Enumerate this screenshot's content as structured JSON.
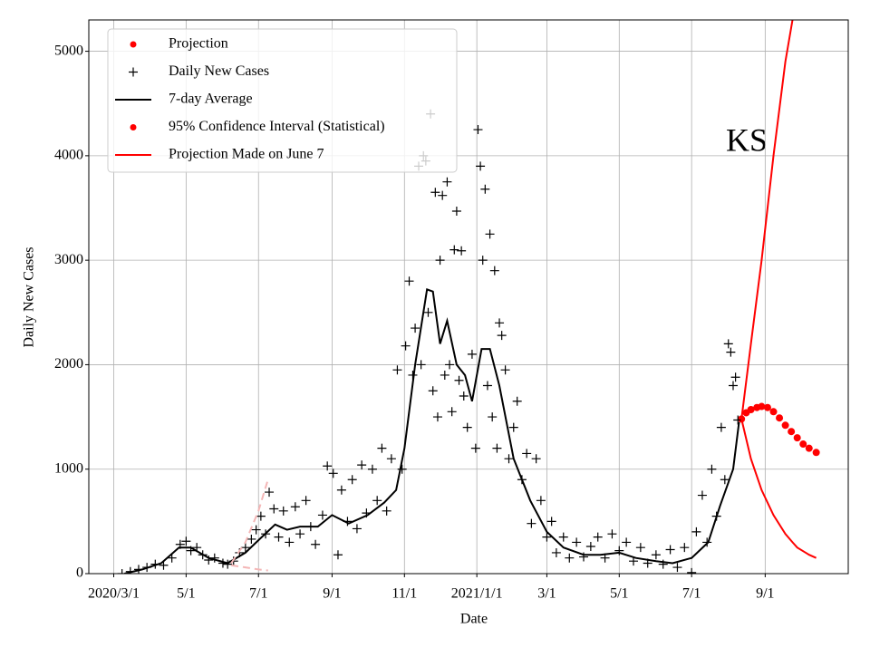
{
  "chart_data": {
    "type": "line",
    "annotation": "KS",
    "xlabel": "Date",
    "ylabel": "Daily New Cases",
    "xlim": [
      "2020-02-09",
      "2021-11-10"
    ],
    "ylim": [
      0,
      5300
    ],
    "xticks": [
      {
        "value": "2020-03-01",
        "label": "2020/3/1"
      },
      {
        "value": "2020-05-01",
        "label": "5/1"
      },
      {
        "value": "2020-07-01",
        "label": "7/1"
      },
      {
        "value": "2020-09-01",
        "label": "9/1"
      },
      {
        "value": "2020-11-01",
        "label": "11/1"
      },
      {
        "value": "2021-01-01",
        "label": "2021/1/1"
      },
      {
        "value": "2021-03-01",
        "label": "3/1"
      },
      {
        "value": "2021-05-01",
        "label": "5/1"
      },
      {
        "value": "2021-07-01",
        "label": "7/1"
      },
      {
        "value": "2021-09-01",
        "label": "9/1"
      }
    ],
    "yticks": [
      0,
      1000,
      2000,
      3000,
      4000,
      5000
    ],
    "grid": true,
    "legend": "upper left",
    "series": [
      {
        "name": "Projection",
        "style": "dot",
        "color": "#ff0000",
        "x": [
          "2021-08-12",
          "2021-08-16",
          "2021-08-20",
          "2021-08-25",
          "2021-08-29",
          "2021-09-03",
          "2021-09-08",
          "2021-09-13",
          "2021-09-18",
          "2021-09-23",
          "2021-09-28",
          "2021-10-03",
          "2021-10-08",
          "2021-10-14"
        ],
        "values": [
          1480,
          1540,
          1570,
          1590,
          1600,
          1590,
          1550,
          1490,
          1420,
          1360,
          1300,
          1240,
          1200,
          1160
        ]
      },
      {
        "name": "Daily New Cases",
        "style": "plus",
        "color": "#000000",
        "x": [
          "2020-03-08",
          "2020-03-15",
          "2020-03-22",
          "2020-03-29",
          "2020-04-05",
          "2020-04-12",
          "2020-04-19",
          "2020-04-26",
          "2020-05-01",
          "2020-05-05",
          "2020-05-10",
          "2020-05-15",
          "2020-05-20",
          "2020-05-25",
          "2020-06-01",
          "2020-06-05",
          "2020-06-10",
          "2020-06-15",
          "2020-06-20",
          "2020-06-25",
          "2020-06-29",
          "2020-07-03",
          "2020-07-07",
          "2020-07-10",
          "2020-07-14",
          "2020-07-18",
          "2020-07-22",
          "2020-07-27",
          "2020-08-01",
          "2020-08-05",
          "2020-08-10",
          "2020-08-14",
          "2020-08-18",
          "2020-08-24",
          "2020-08-28",
          "2020-09-02",
          "2020-09-06",
          "2020-09-09",
          "2020-09-14",
          "2020-09-18",
          "2020-09-22",
          "2020-09-26",
          "2020-09-30",
          "2020-10-05",
          "2020-10-09",
          "2020-10-13",
          "2020-10-17",
          "2020-10-21",
          "2020-10-26",
          "2020-10-30",
          "2020-11-02",
          "2020-11-05",
          "2020-11-08",
          "2020-11-10",
          "2020-11-13",
          "2020-11-15",
          "2020-11-17",
          "2020-11-19",
          "2020-11-21",
          "2020-11-23",
          "2020-11-25",
          "2020-11-27",
          "2020-11-29",
          "2020-12-01",
          "2020-12-03",
          "2020-12-05",
          "2020-12-07",
          "2020-12-09",
          "2020-12-11",
          "2020-12-13",
          "2020-12-15",
          "2020-12-17",
          "2020-12-19",
          "2020-12-21",
          "2020-12-24",
          "2020-12-28",
          "2020-12-31",
          "2021-01-02",
          "2021-01-04",
          "2021-01-06",
          "2021-01-08",
          "2021-01-10",
          "2021-01-12",
          "2021-01-14",
          "2021-01-16",
          "2021-01-18",
          "2021-01-20",
          "2021-01-22",
          "2021-01-25",
          "2021-01-28",
          "2021-02-01",
          "2021-02-04",
          "2021-02-08",
          "2021-02-12",
          "2021-02-16",
          "2021-02-20",
          "2021-02-24",
          "2021-03-01",
          "2021-03-05",
          "2021-03-09",
          "2021-03-15",
          "2021-03-20",
          "2021-03-26",
          "2021-04-01",
          "2021-04-07",
          "2021-04-13",
          "2021-04-19",
          "2021-04-25",
          "2021-05-01",
          "2021-05-07",
          "2021-05-13",
          "2021-05-19",
          "2021-05-25",
          "2021-06-01",
          "2021-06-07",
          "2021-06-13",
          "2021-06-19",
          "2021-06-25",
          "2021-07-01",
          "2021-07-05",
          "2021-07-10",
          "2021-07-14",
          "2021-07-18",
          "2021-07-22",
          "2021-07-26",
          "2021-07-29",
          "2021-08-01",
          "2021-08-03",
          "2021-08-05",
          "2021-08-07",
          "2021-08-09"
        ],
        "values": [
          0,
          20,
          40,
          60,
          90,
          80,
          150,
          280,
          310,
          220,
          250,
          180,
          130,
          150,
          100,
          90,
          120,
          200,
          250,
          330,
          420,
          550,
          380,
          780,
          620,
          350,
          600,
          300,
          640,
          380,
          700,
          450,
          280,
          560,
          1030,
          960,
          180,
          800,
          500,
          900,
          430,
          1040,
          580,
          1000,
          700,
          1200,
          600,
          1100,
          1950,
          1000,
          2180,
          2800,
          1900,
          2350,
          3900,
          2000,
          4000,
          3950,
          2500,
          4400,
          1750,
          3650,
          1500,
          3000,
          3620,
          1900,
          3750,
          2000,
          1550,
          3100,
          3470,
          1850,
          3090,
          1700,
          1400,
          2100,
          1200,
          4250,
          3900,
          3000,
          3680,
          1800,
          3250,
          1500,
          2900,
          1200,
          2400,
          2280,
          1950,
          1100,
          1400,
          1650,
          900,
          1150,
          480,
          1100,
          700,
          350,
          500,
          200,
          350,
          150,
          300,
          160,
          260,
          350,
          150,
          380,
          220,
          300,
          120,
          250,
          100,
          180,
          90,
          230,
          60,
          250,
          10,
          400,
          750,
          300,
          1000,
          550,
          1400,
          900,
          2200,
          2120,
          1800,
          1880,
          1470
        ]
      },
      {
        "name": "7-day Average",
        "style": "line",
        "color": "#000000",
        "x": [
          "2020-03-10",
          "2020-03-25",
          "2020-04-10",
          "2020-04-25",
          "2020-05-05",
          "2020-05-20",
          "2020-06-05",
          "2020-06-20",
          "2020-07-01",
          "2020-07-15",
          "2020-07-25",
          "2020-08-05",
          "2020-08-20",
          "2020-09-01",
          "2020-09-15",
          "2020-10-01",
          "2020-10-15",
          "2020-10-25",
          "2020-11-01",
          "2020-11-10",
          "2020-11-20",
          "2020-11-25",
          "2020-12-01",
          "2020-12-07",
          "2020-12-15",
          "2020-12-22",
          "2020-12-28",
          "2021-01-05",
          "2021-01-12",
          "2021-01-20",
          "2021-02-01",
          "2021-02-15",
          "2021-03-01",
          "2021-03-15",
          "2021-04-01",
          "2021-04-15",
          "2021-05-01",
          "2021-05-15",
          "2021-06-01",
          "2021-06-15",
          "2021-07-01",
          "2021-07-15",
          "2021-07-25",
          "2021-08-05",
          "2021-08-10"
        ],
        "values": [
          0,
          40,
          100,
          250,
          250,
          150,
          100,
          200,
          320,
          470,
          420,
          450,
          450,
          560,
          480,
          560,
          680,
          800,
          1200,
          2000,
          2720,
          2700,
          2200,
          2420,
          2000,
          1900,
          1650,
          2150,
          2150,
          1800,
          1100,
          700,
          400,
          250,
          180,
          180,
          200,
          150,
          120,
          100,
          150,
          300,
          650,
          1000,
          1450
        ]
      },
      {
        "name": "95% Confidence Interval (Statistical)",
        "style": "band-lines",
        "legend_style": "dot",
        "color": "#ff0000",
        "x": [
          "2021-08-12",
          "2021-08-20",
          "2021-08-29",
          "2021-09-08",
          "2021-09-18",
          "2021-09-24",
          "2021-09-28",
          "2021-10-08",
          "2021-10-14"
        ],
        "upper": [
          1480,
          2200,
          3000,
          4000,
          4900,
          5300,
          null,
          null,
          null
        ],
        "lower": [
          1480,
          1100,
          800,
          560,
          380,
          300,
          250,
          180,
          150
        ]
      },
      {
        "name": "Projection Made on June 7",
        "style": "band-lines",
        "dashed": true,
        "legend_style": "line",
        "color": "#ff0000",
        "draw_color": "#f4b6b6",
        "x": [
          "2020-06-08",
          "2020-06-20",
          "2020-07-01",
          "2020-07-09"
        ],
        "upper": [
          100,
          300,
          600,
          900
        ],
        "lower": [
          80,
          60,
          40,
          30
        ]
      }
    ]
  }
}
